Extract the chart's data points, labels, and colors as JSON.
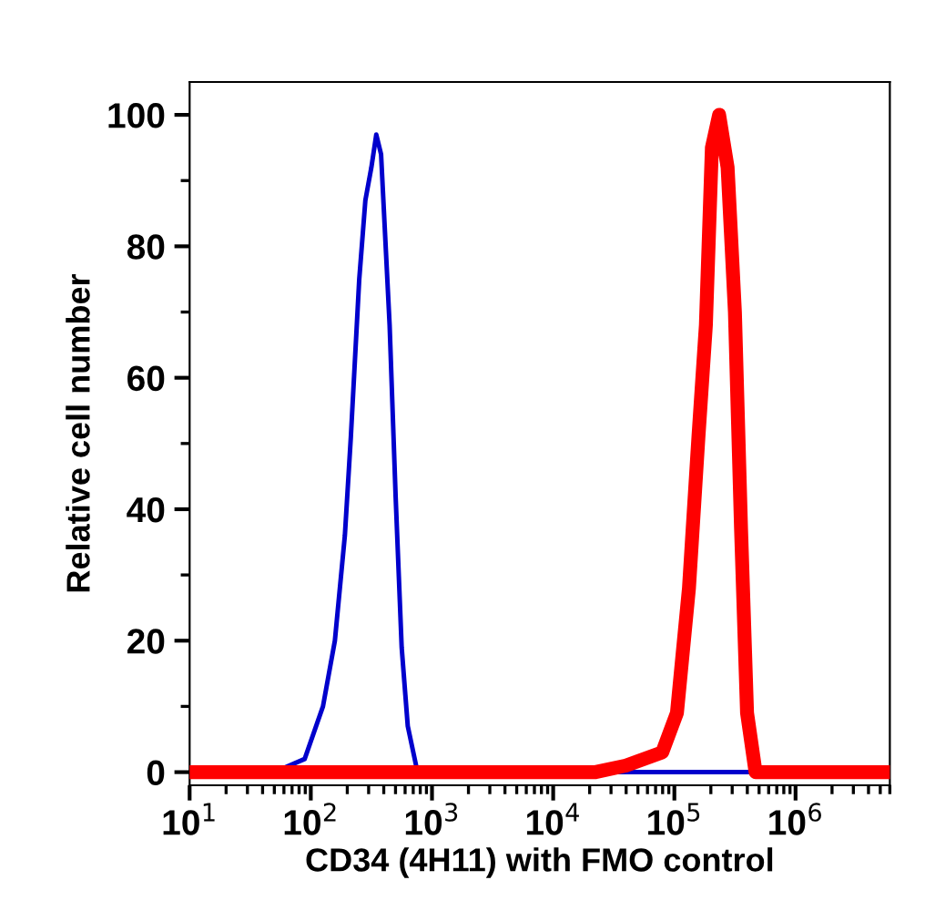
{
  "chart_data": {
    "type": "line",
    "xlabel": "CD34 (4H11) with FMO control",
    "ylabel": "Relative cell number",
    "log": "x",
    "xlim": [
      10,
      6000000
    ],
    "ylim": [
      -2,
      105
    ],
    "xticks": [
      {
        "value": 10,
        "label": "10$^{1}$"
      },
      {
        "value": 100,
        "label": "10$^{2}$"
      },
      {
        "value": 1000,
        "label": "10$^{3}$"
      },
      {
        "value": 10000,
        "label": "10$^{4}$"
      },
      {
        "value": 100000,
        "label": "10$^{5}$"
      },
      {
        "value": 1000000,
        "label": "10$^{6}$"
      }
    ],
    "yticks": [
      0,
      20,
      40,
      60,
      80,
      100
    ],
    "grid": false,
    "legend": false,
    "marker": "none",
    "line_style": "solid",
    "series": [
      {
        "color": "#0000cc",
        "x": [
          10,
          50,
          89,
          126,
          158,
          191,
          214,
          251,
          282,
          316,
          347,
          380,
          447,
          501,
          562,
          631,
          759,
          891,
          6000000
        ],
        "values": [
          0,
          0,
          2,
          10,
          20,
          36,
          51,
          75,
          87,
          92,
          97,
          94,
          68,
          42,
          19,
          7,
          0,
          0,
          0
        ]
      },
      {
        "color": "#ff0000",
        "x": [
          10,
          22400,
          39800,
          79400,
          105000,
          132000,
          158000,
          182000,
          204000,
          234000,
          275000,
          316000,
          355000,
          398000,
          468000,
          617000,
          6000000
        ],
        "values": [
          0,
          0,
          1,
          3,
          9,
          28,
          51,
          68,
          95,
          100,
          92,
          70,
          37,
          9,
          0,
          0,
          0
        ]
      }
    ]
  }
}
